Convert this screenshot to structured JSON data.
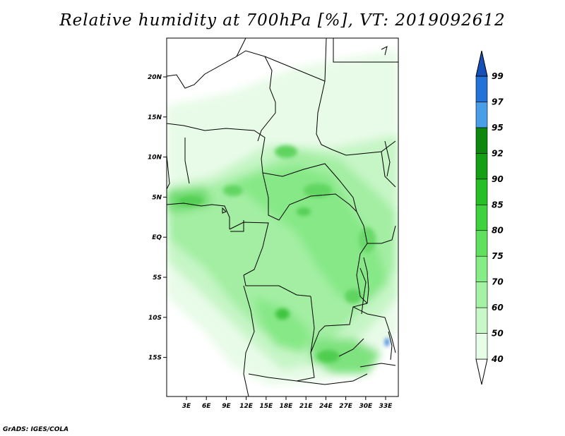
{
  "title": "Relative humidity at 700hPa [%], VT: 2019092612",
  "footer": "GrADS: IGES/COLA",
  "map": {
    "variable": "Relative humidity",
    "level": "700hPa",
    "units": "%",
    "valid_time": "2019092612",
    "lat_ticks": [
      "20N",
      "15N",
      "10N",
      "5N",
      "EQ",
      "5S",
      "10S",
      "15S"
    ],
    "lon_ticks": [
      "3E",
      "6E",
      "9E",
      "12E",
      "15E",
      "18E",
      "21E",
      "24E",
      "27E",
      "30E",
      "33E"
    ]
  },
  "colorbar": {
    "levels": [
      "40",
      "50",
      "60",
      "70",
      "75",
      "80",
      "85",
      "90",
      "92",
      "95",
      "97",
      "99"
    ],
    "colors": [
      "#ffffff",
      "#e6fde6",
      "#c8f8c8",
      "#a5f2a5",
      "#86ec86",
      "#5fe05f",
      "#3ed23e",
      "#26c026",
      "#159f15",
      "#0d870d",
      "#4a9ee8",
      "#2272d8",
      "#1450b8"
    ]
  }
}
